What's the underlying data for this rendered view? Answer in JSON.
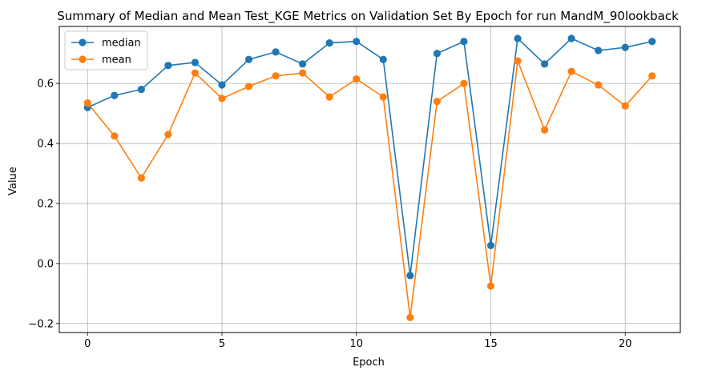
{
  "chart_data": {
    "type": "line",
    "title": "Summary of Median and Mean Test_KGE Metrics on Validation Set By Epoch for run MandM_90lookback",
    "xlabel": "Epoch",
    "ylabel": "Value",
    "xlim": [
      -1.05,
      22.05
    ],
    "ylim": [
      -0.23,
      0.79
    ],
    "xticks": [
      0,
      5,
      10,
      15,
      20
    ],
    "yticks": [
      -0.2,
      0.0,
      0.2,
      0.4,
      0.6
    ],
    "ytick_labels": [
      "−0.2",
      "0.0",
      "0.2",
      "0.4",
      "0.6"
    ],
    "grid": true,
    "legend_position": "upper-left",
    "x": [
      0,
      1,
      2,
      3,
      4,
      5,
      6,
      7,
      8,
      9,
      10,
      11,
      12,
      13,
      14,
      15,
      16,
      17,
      18,
      19,
      20,
      21
    ],
    "series": [
      {
        "name": "median",
        "color": "#1f77b4",
        "values": [
          0.52,
          0.56,
          0.58,
          0.66,
          0.67,
          0.595,
          0.68,
          0.705,
          0.665,
          0.735,
          0.74,
          0.68,
          -0.04,
          0.7,
          0.74,
          0.06,
          0.75,
          0.665,
          0.75,
          0.71,
          0.72,
          0.74
        ]
      },
      {
        "name": "mean",
        "color": "#ff7f0e",
        "values": [
          0.535,
          0.425,
          0.285,
          0.43,
          0.635,
          0.55,
          0.59,
          0.625,
          0.635,
          0.555,
          0.615,
          0.555,
          -0.18,
          0.54,
          0.6,
          -0.075,
          0.675,
          0.445,
          0.64,
          0.595,
          0.525,
          0.625
        ]
      }
    ]
  }
}
